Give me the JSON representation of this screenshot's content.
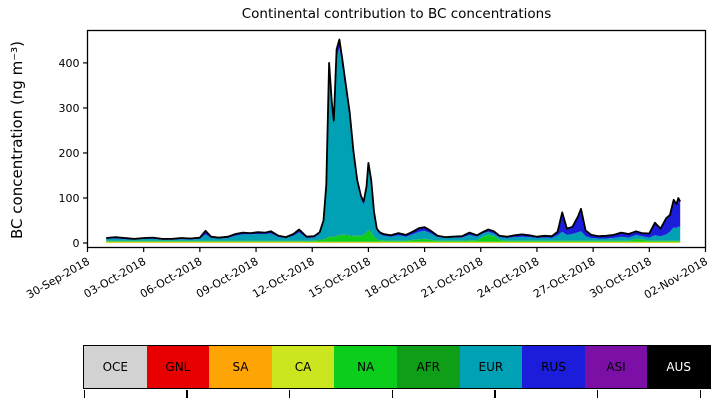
{
  "chart_data": {
    "type": "area",
    "stacked": true,
    "title": "Continental contribution to BC concentrations",
    "ylabel": "BC concentration (ng m⁻³)",
    "xlabel": "",
    "grid": false,
    "legend_position": "bottom",
    "outline_color": "#000000",
    "x_unit": "days since 30-Sep-2018",
    "xlim": [
      0,
      33
    ],
    "ylim": [
      -10,
      472
    ],
    "y_ticks": [
      0,
      100,
      200,
      300,
      400
    ],
    "x_tick_days": [
      0,
      3,
      6,
      9,
      12,
      15,
      18,
      21,
      24,
      27,
      30,
      33
    ],
    "x_tick_labels": [
      "30-Sep-2018",
      "03-Oct-2018",
      "06-Oct-2018",
      "09-Oct-2018",
      "12-Oct-2018",
      "15-Oct-2018",
      "18-Oct-2018",
      "21-Oct-2018",
      "24-Oct-2018",
      "27-Oct-2018",
      "30-Oct-2018",
      "02-Nov-2018"
    ],
    "days": [
      1.0,
      1.5,
      2.0,
      2.5,
      3.0,
      3.5,
      4.0,
      4.5,
      5.0,
      5.5,
      6.0,
      6.3,
      6.6,
      7.0,
      7.5,
      7.9,
      8.3,
      8.7,
      9.1,
      9.5,
      9.8,
      10.2,
      10.6,
      11.0,
      11.3,
      11.7,
      12.1,
      12.4,
      12.6,
      12.75,
      12.9,
      13.05,
      13.15,
      13.3,
      13.45,
      13.6,
      13.8,
      14.0,
      14.2,
      14.4,
      14.6,
      14.75,
      14.9,
      15.0,
      15.15,
      15.3,
      15.45,
      15.6,
      15.8,
      16.2,
      16.6,
      17.0,
      17.4,
      17.7,
      18.0,
      18.3,
      18.7,
      19.1,
      19.5,
      20.0,
      20.4,
      20.8,
      21.1,
      21.4,
      21.7,
      22.0,
      22.4,
      22.8,
      23.2,
      23.6,
      24.0,
      24.4,
      24.8,
      25.1,
      25.35,
      25.6,
      25.9,
      26.2,
      26.35,
      26.6,
      26.9,
      27.3,
      27.7,
      28.1,
      28.5,
      28.9,
      29.3,
      29.6,
      30.0,
      30.3,
      30.6,
      30.9,
      31.1,
      31.3,
      31.45,
      31.55,
      31.65
    ],
    "series": [
      {
        "name": "SA",
        "color": "#ffa405",
        "values": 0.8
      },
      {
        "name": "CA",
        "color": "#cbe51f",
        "values": 2
      },
      {
        "name": "NA",
        "color": "#0ccc1c",
        "values": [
          1.5,
          1.5,
          1.5,
          1.5,
          1.5,
          1.5,
          1.5,
          1.5,
          1.5,
          1.5,
          1.5,
          1.5,
          1.5,
          1.5,
          1.5,
          1.5,
          1.5,
          1.5,
          1.5,
          1.5,
          1.5,
          1.5,
          1.5,
          1.5,
          1.5,
          1.5,
          2,
          3,
          4,
          6,
          10,
          10,
          10,
          12,
          14,
          14,
          14,
          13,
          12,
          12,
          12,
          14,
          20,
          25,
          20,
          10,
          5,
          3,
          2.5,
          2,
          2,
          2,
          4,
          5,
          6,
          4,
          2,
          2,
          2,
          2,
          3,
          3,
          10,
          15,
          12,
          4,
          2,
          2,
          2,
          2,
          2,
          2,
          2,
          2,
          2,
          2,
          2,
          2,
          2,
          2,
          2,
          2,
          2,
          2,
          2,
          2,
          6,
          5,
          2,
          2,
          2,
          2,
          2,
          2,
          2,
          2,
          2
        ]
      },
      {
        "name": "AFR",
        "color": "#0e9e17",
        "values": [
          0.5,
          0.5,
          0.5,
          0.5,
          0.5,
          0.5,
          0.5,
          0.5,
          0.5,
          0.5,
          0.5,
          0.5,
          0.5,
          0.5,
          0.5,
          0.5,
          0.5,
          0.5,
          0.5,
          0.5,
          0.5,
          0.5,
          0.5,
          0.5,
          0.5,
          0.5,
          0.5,
          1.5,
          1.5,
          1.5,
          1.5,
          1.5,
          1.5,
          1.5,
          1.5,
          1.5,
          1.5,
          1.5,
          1.5,
          1.5,
          1.5,
          1.5,
          1.5,
          1.5,
          1.5,
          1.5,
          1.5,
          0.5,
          0.5,
          0.5,
          0.5,
          0.5,
          0.5,
          0.5,
          0.5,
          0.5,
          0.5,
          0.5,
          0.5,
          0.5,
          0.5,
          0.5,
          0.5,
          0.5,
          0.5,
          0.5,
          0.5,
          0.5,
          0.5,
          0.5,
          0.5,
          0.5,
          0.5,
          0.5,
          0.5,
          0.5,
          0.5,
          0.5,
          0.5,
          0.5,
          0.5,
          0.5,
          0.5,
          0.5,
          0.5,
          0.5,
          0.5,
          0.5,
          0.5,
          0.5,
          0.5,
          0.5,
          0.5,
          0.5,
          0.5,
          0.5,
          0.5
        ]
      },
      {
        "name": "EUR",
        "color": "#00a1b5",
        "values": [
          4.2,
          5.2,
          3.7,
          2.2,
          4.2,
          4.2,
          2.2,
          2.2,
          3.7,
          3.2,
          4.2,
          14.2,
          6.2,
          5.2,
          6.2,
          11.2,
          14.2,
          14.2,
          15.2,
          15.2,
          16.2,
          8.2,
          6.2,
          11.2,
          19.2,
          6.2,
          6.7,
          12.7,
          35.7,
          109.7,
          367.7,
          279.7,
          242.7,
          395.7,
          415.7,
          375.7,
          316.7,
          258.7,
          176.7,
          113.7,
          80.7,
          66.7,
          92.7,
          138.7,
          106.7,
          49.7,
          18.7,
          13.7,
          10.2,
          8.7,
          11.7,
          8.7,
          12.7,
          16.7,
          17.7,
          14.7,
          7.7,
          5.7,
          6.2,
          6.7,
          11.7,
          7.7,
          7.7,
          6.7,
          5.7,
          5.7,
          5.7,
          7.7,
          8.7,
          7.7,
          5.7,
          6.7,
          5.7,
          11.7,
          19.7,
          12.7,
          14.7,
          18.7,
          20.7,
          9.7,
          5.7,
          4.7,
          4.7,
          5.7,
          8.7,
          6.7,
          8.7,
          6.7,
          6.7,
          11.7,
          9.7,
          13.7,
          19.7,
          29.7,
          27.7,
          31.7,
          29.7
        ]
      },
      {
        "name": "RUS",
        "color": "#1c1cdb",
        "values": [
          2,
          3,
          2.5,
          2,
          2,
          3,
          2,
          2,
          2.5,
          2,
          3,
          8,
          3,
          2,
          3,
          4,
          4,
          3,
          4,
          3,
          5,
          3,
          2,
          4,
          6,
          3,
          3,
          4,
          6,
          10,
          18,
          16,
          15,
          18,
          18,
          16,
          15,
          14,
          12,
          10,
          8,
          7,
          8,
          10,
          9,
          6,
          4,
          4,
          4,
          3,
          5,
          4,
          6,
          8,
          8,
          6,
          3,
          2,
          2.5,
          3,
          5,
          3,
          3,
          3,
          3,
          3,
          3,
          4,
          5,
          4,
          3,
          4,
          4,
          8,
          40,
          14,
          16,
          36,
          46,
          13,
          7,
          5,
          6,
          7,
          9,
          8,
          8,
          7,
          9,
          28,
          17,
          36,
          37,
          56,
          50,
          57,
          52
        ]
      },
      {
        "name": "ASI",
        "color": "#7c0fa6",
        "values": [
          0,
          0,
          0,
          0,
          0,
          0,
          0,
          0,
          0,
          0,
          0,
          0,
          0,
          0,
          0,
          0,
          0,
          0,
          0,
          0,
          0,
          0,
          0,
          0,
          0,
          0,
          0,
          0,
          0,
          0,
          0,
          0,
          0,
          0,
          0,
          0,
          0,
          0,
          0,
          0,
          0,
          0,
          0,
          0,
          0,
          0,
          0,
          0,
          0,
          0,
          0,
          0,
          0,
          0,
          0,
          0,
          0,
          0,
          0,
          0,
          0,
          0,
          0,
          2,
          2,
          0,
          0,
          0,
          0,
          0,
          0,
          0,
          0,
          0,
          3,
          0,
          0,
          0,
          4,
          0,
          0,
          0,
          0,
          0,
          0,
          0,
          0,
          0,
          0,
          0,
          0,
          0,
          0,
          5,
          3,
          6,
          5
        ]
      }
    ]
  },
  "legend": {
    "items": [
      {
        "label": "OCE",
        "color": "#d2d2d2",
        "text": "#000000"
      },
      {
        "label": "GNL",
        "color": "#e80000",
        "text": "#000000"
      },
      {
        "label": "SA",
        "color": "#ffa405",
        "text": "#000000"
      },
      {
        "label": "CA",
        "color": "#cbe51f",
        "text": "#000000"
      },
      {
        "label": "NA",
        "color": "#0ccc1c",
        "text": "#000000"
      },
      {
        "label": "AFR",
        "color": "#0e9e17",
        "text": "#000000"
      },
      {
        "label": "EUR",
        "color": "#00a1b5",
        "text": "#000000"
      },
      {
        "label": "RUS",
        "color": "#1c1cdb",
        "text": "#000000"
      },
      {
        "label": "ASI",
        "color": "#7c0fa6",
        "text": "#000000"
      },
      {
        "label": "AUS",
        "color": "#000000",
        "text": "#ffffff"
      }
    ]
  },
  "bottom_axis": {
    "tick_x": [
      83.5,
      186.2,
      288.9,
      391.5,
      494.2,
      596.9,
      699.5
    ]
  }
}
